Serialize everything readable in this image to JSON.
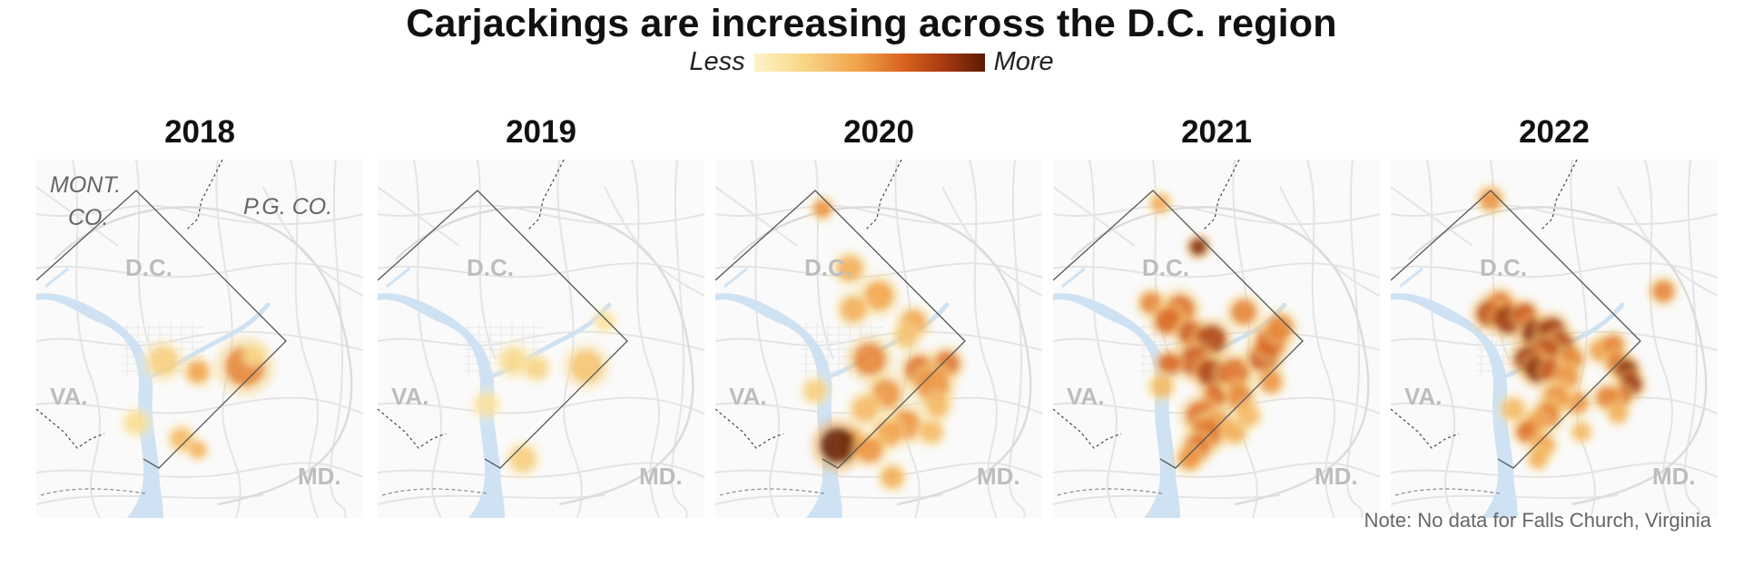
{
  "title": "Carjackings are increasing across the D.C. region",
  "legend": {
    "low_label": "Less",
    "high_label": "More",
    "colors": [
      "#fff3c8",
      "#f8d98b",
      "#f1a24a",
      "#d8611e",
      "#a83a10",
      "#5c1a04"
    ]
  },
  "note": "Note: No data for Falls Church, Virginia",
  "region_labels": {
    "dc": "D.C.",
    "va": "VA.",
    "md": "MD.",
    "mont_line1": "MONT.",
    "mont_line2": "CO.",
    "pg": "P.G. CO."
  },
  "colors": {
    "river": "#cfe2f3",
    "roads": "#e4e4e4",
    "boundary": "#555555"
  },
  "panels": [
    {
      "year": "2018",
      "show_county_labels": true
    },
    {
      "year": "2019",
      "show_county_labels": false
    },
    {
      "year": "2020",
      "show_county_labels": false
    },
    {
      "year": "2021",
      "show_county_labels": false
    },
    {
      "year": "2022",
      "show_county_labels": false
    }
  ]
}
